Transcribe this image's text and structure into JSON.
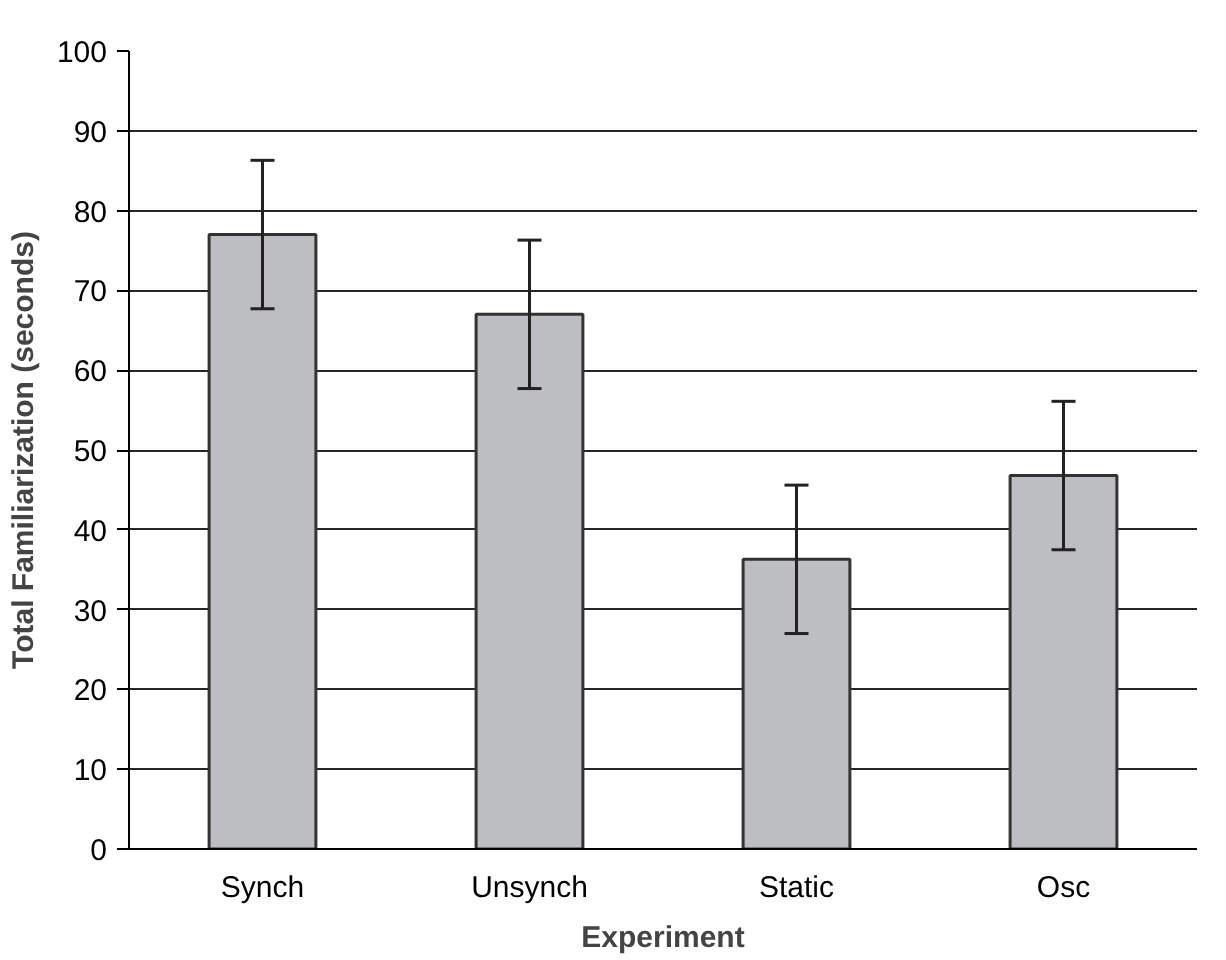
{
  "chart_data": {
    "type": "bar",
    "xlabel": "Experiment",
    "ylabel": "Total Familiarization (seconds)",
    "categories": [
      "Synch",
      "Unsynch",
      "Static",
      "Osc"
    ],
    "values": [
      77,
      67,
      36.3,
      46.8
    ],
    "errors": [
      9.3,
      9.3,
      9.3,
      9.3
    ],
    "color": "#bdbec1",
    "ylim": [
      0,
      100
    ],
    "yticks": [
      0,
      10,
      20,
      30,
      40,
      50,
      60,
      70,
      80,
      90,
      100
    ],
    "grid": "y"
  }
}
